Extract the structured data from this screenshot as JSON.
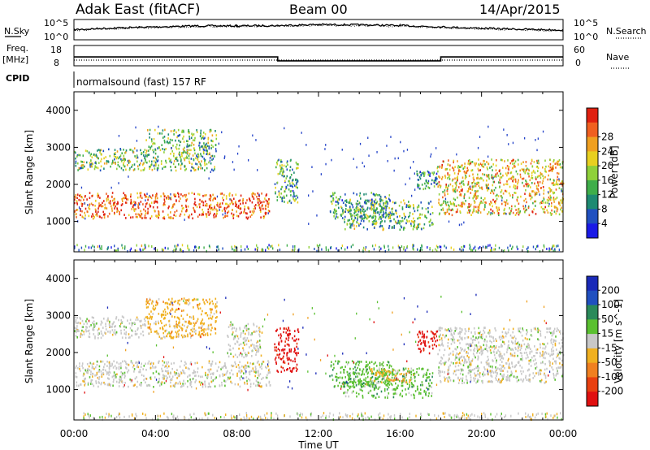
{
  "header": {
    "station": "Adak East (fitACF)",
    "beam": "Beam 00",
    "date": "14/Apr/2015"
  },
  "noise_panel": {
    "left_label": "N.Sky",
    "right_label": "N.Search",
    "tick_top": "10^5",
    "tick_bottom": "10^0",
    "tick_top_right": "10^5",
    "tick_bottom_right": "10^0"
  },
  "freq_panel": {
    "left_label_top": "Freq.",
    "left_label_unit": "[MHz]",
    "left_tick_top": "18",
    "left_tick_bottom": "8",
    "right_label": "Nave",
    "right_tick_top": "60",
    "right_tick_bottom": "0"
  },
  "cpid_panel": {
    "label": "CPID",
    "text": "normalsound (fast) 157 RF"
  },
  "colors": {
    "freq_line": "#000000",
    "nave_line": "#000000"
  },
  "chart_data": [
    {
      "type": "line",
      "name": "noise",
      "series": [
        {
          "name": "N.Sky",
          "x": [
            "00:00",
            "02:00",
            "04:00",
            "06:00",
            "08:00",
            "10:00",
            "12:00",
            "14:00",
            "16:00",
            "18:00",
            "20:00",
            "22:00",
            "24:00"
          ],
          "values": [
            2.5,
            3.0,
            3.3,
            3.6,
            3.6,
            3.7,
            4.0,
            3.9,
            3.7,
            3.3,
            2.9,
            2.6,
            2.4
          ]
        },
        {
          "name": "N.Search",
          "x": [
            "00:00",
            "02:00",
            "04:00",
            "06:00",
            "08:00",
            "10:00",
            "12:00",
            "14:00",
            "16:00",
            "18:00",
            "20:00",
            "22:00",
            "24:00"
          ],
          "values": [
            2.3,
            2.8,
            3.1,
            3.4,
            3.4,
            3.5,
            3.8,
            3.7,
            3.5,
            3.1,
            2.7,
            2.4,
            2.2
          ]
        }
      ],
      "ylim": [
        0,
        5
      ]
    },
    {
      "type": "line",
      "name": "frequency",
      "series": [
        {
          "name": "Freq.",
          "x": [
            0,
            10,
            10,
            18,
            18,
            24
          ],
          "values": [
            12.3,
            12.3,
            10.2,
            10.2,
            12.3,
            12.3
          ]
        },
        {
          "name": "Nave",
          "x": [
            0,
            24
          ],
          "values": [
            13,
            13
          ]
        }
      ],
      "ylim": [
        8,
        18
      ]
    },
    {
      "type": "heatmap",
      "name": "power",
      "xlabel": "",
      "ylabel": "Slant Range [km]",
      "colorbar_label": "Power [dB]",
      "colorbar_ticks": [
        "4",
        "8",
        "12",
        "16",
        "20",
        "24",
        "28"
      ],
      "colorbar_colors": [
        "#1a1ae6",
        "#2050c0",
        "#1e8a72",
        "#3fae4a",
        "#8fd03a",
        "#e8d020",
        "#f0a020",
        "#f06020",
        "#e02010"
      ],
      "yticks": [
        "1000",
        "2000",
        "3000",
        "4000"
      ],
      "ylim": [
        180,
        4500
      ],
      "xlim": [
        0,
        24
      ],
      "regions": [
        {
          "t0": 0.0,
          "t1": 9.6,
          "r0": 1100,
          "r1": 1800,
          "level": 0.85
        },
        {
          "t0": 0.0,
          "t1": 3.5,
          "r0": 2400,
          "r1": 3000,
          "level": 0.45
        },
        {
          "t0": 3.5,
          "t1": 7.0,
          "r0": 2400,
          "r1": 3500,
          "level": 0.45
        },
        {
          "t0": 9.8,
          "t1": 11.0,
          "r0": 1500,
          "r1": 2700,
          "level": 0.35
        },
        {
          "t0": 12.5,
          "t1": 15.6,
          "r0": 1100,
          "r1": 1800,
          "level": 0.35
        },
        {
          "t0": 13.2,
          "t1": 17.6,
          "r0": 800,
          "r1": 1600,
          "level": 0.4
        },
        {
          "t0": 16.8,
          "t1": 17.8,
          "r0": 1900,
          "r1": 2400,
          "level": 0.3
        },
        {
          "t0": 17.8,
          "t1": 24.0,
          "r0": 1200,
          "r1": 2700,
          "level": 0.65
        }
      ]
    },
    {
      "type": "heatmap",
      "name": "velocity",
      "xlabel": "Time UT",
      "ylabel": "Slant Range [km]",
      "colorbar_label": "Velocity [m s^-1]",
      "colorbar_ticks": [
        "200",
        "100",
        "50",
        "15",
        "-15",
        "-50",
        "-100",
        "-200"
      ],
      "colorbar_colors": [
        "#1a2ab8",
        "#2050c0",
        "#2a8a5a",
        "#5ac030",
        "#c8c8c8",
        "#f0b020",
        "#f08020",
        "#e84010",
        "#e01010"
      ],
      "xticks": [
        "00:00",
        "04:00",
        "08:00",
        "12:00",
        "16:00",
        "20:00",
        "00:00"
      ],
      "yticks": [
        "1000",
        "2000",
        "3000",
        "4000"
      ],
      "ylim": [
        180,
        4500
      ],
      "xlim": [
        0,
        24
      ],
      "regions": [
        {
          "t0": 0.0,
          "t1": 9.6,
          "r0": 1100,
          "r1": 1800,
          "vel": "-15"
        },
        {
          "t0": 0.0,
          "t1": 3.5,
          "r0": 2400,
          "r1": 3000,
          "vel": "-15"
        },
        {
          "t0": 3.5,
          "t1": 7.0,
          "r0": 2400,
          "r1": 3500,
          "vel": "-50"
        },
        {
          "t0": 7.5,
          "t1": 9.2,
          "r0": 1900,
          "r1": 2800,
          "vel": "-15"
        },
        {
          "t0": 9.8,
          "t1": 11.0,
          "r0": 1500,
          "r1": 2700,
          "vel": "-200"
        },
        {
          "t0": 12.5,
          "t1": 15.6,
          "r0": 1100,
          "r1": 1800,
          "vel": "50"
        },
        {
          "t0": 13.2,
          "t1": 17.6,
          "r0": 800,
          "r1": 1600,
          "vel": "50"
        },
        {
          "t0": 14.5,
          "t1": 16.5,
          "r0": 1200,
          "r1": 1600,
          "vel": "-50"
        },
        {
          "t0": 16.8,
          "t1": 17.8,
          "r0": 2000,
          "r1": 2600,
          "vel": "-200"
        },
        {
          "t0": 17.8,
          "t1": 24.0,
          "r0": 1200,
          "r1": 2700,
          "vel": "-15"
        }
      ]
    }
  ]
}
